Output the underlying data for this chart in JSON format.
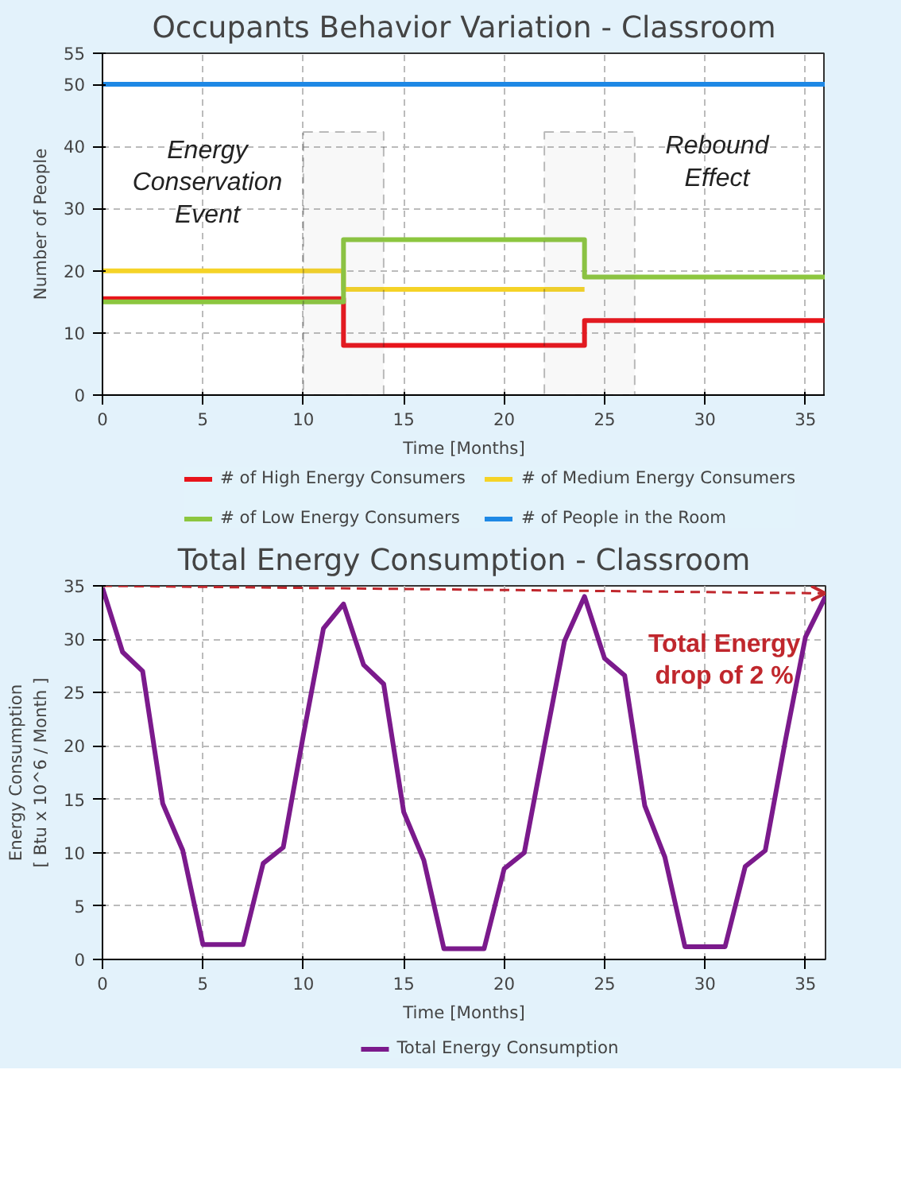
{
  "chart_data": [
    {
      "type": "step",
      "title": "Occupants Behavior Variation - Classroom",
      "xlabel": "Time [Months]",
      "ylabel": "Number of People",
      "xlim": [
        0,
        36
      ],
      "ylim": [
        0,
        55
      ],
      "xticks": [
        0,
        5,
        10,
        15,
        20,
        25,
        30,
        35
      ],
      "yticks": [
        0,
        10,
        20,
        30,
        40,
        50,
        55
      ],
      "grid": true,
      "legend": "bottom",
      "line_style": "solid",
      "series": [
        {
          "name": "# of High Energy Consumers",
          "color": "#e8141b",
          "x": [
            0,
            12,
            24,
            36
          ],
          "values": [
            15.5,
            8,
            12,
            12
          ]
        },
        {
          "name": "# of Medium Energy Consumers",
          "color": "#f5d327",
          "x": [
            0,
            12,
            24
          ],
          "values": [
            20,
            17,
            17
          ]
        },
        {
          "name": "# of Low Energy Consumers",
          "color": "#8cc63f",
          "x": [
            0,
            12,
            24,
            36
          ],
          "values": [
            15,
            25,
            19,
            19
          ]
        },
        {
          "name": "# of People in the Room",
          "color": "#1e88e5",
          "x": [
            0,
            36
          ],
          "values": [
            50,
            50
          ]
        }
      ],
      "bands": [
        {
          "axis": "x",
          "from": 10,
          "to": 14
        },
        {
          "axis": "x",
          "from": 22,
          "to": 26.5
        }
      ],
      "annotations": [
        "Energy\nConservation\nEvent",
        "Rebound\nEffect"
      ]
    },
    {
      "type": "line",
      "title": "Total Energy Consumption - Classroom",
      "xlabel": "Time [Months]",
      "ylabel": "Energy Consumption\n[ Btu x 10^6 / Month ]",
      "xlim": [
        0,
        36
      ],
      "ylim": [
        0,
        35
      ],
      "xticks": [
        0,
        5,
        10,
        15,
        20,
        25,
        30,
        35
      ],
      "yticks": [
        0,
        5,
        10,
        15,
        20,
        25,
        30,
        35
      ],
      "grid": true,
      "legend": "bottom",
      "line_style": "solid",
      "series": [
        {
          "name": "Total Energy Consumption",
          "color": "#7b1a8c",
          "x": [
            0,
            1,
            2,
            3,
            4,
            5,
            6,
            7,
            8,
            9,
            10,
            11,
            12,
            13,
            14,
            15,
            16,
            17,
            18,
            19,
            20,
            21,
            22,
            23,
            24,
            25,
            26,
            27,
            28,
            29,
            30,
            31,
            32,
            33,
            34,
            35,
            36
          ],
          "values": [
            34.8,
            28.8,
            27,
            14.6,
            10.2,
            1.4,
            1.4,
            1.4,
            9,
            10.5,
            21,
            31,
            33.3,
            27.6,
            25.8,
            13.8,
            9.3,
            1,
            1,
            1,
            8.5,
            10,
            20,
            29.8,
            34,
            28.2,
            26.6,
            14.4,
            9.6,
            1.2,
            1.2,
            1.2,
            8.7,
            10.2,
            20.5,
            30.2,
            34
          ]
        },
        {
          "color": "#c0272d",
          "line_style": "dashed",
          "x": [
            0,
            36
          ],
          "values": [
            35,
            34.3
          ]
        }
      ],
      "annotations": [
        "Total Energy\ndrop of 2 %"
      ]
    }
  ]
}
